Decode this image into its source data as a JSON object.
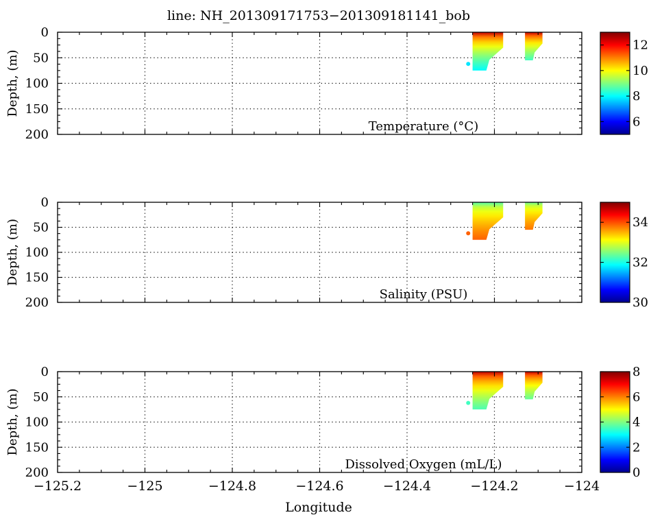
{
  "title": "line: NH_201309171753−201309181141_bob",
  "xlabel": "Longitude",
  "colormap": [
    "#00008f",
    "#0000ff",
    "#0080ff",
    "#00ffff",
    "#80ff80",
    "#ffff00",
    "#ff8000",
    "#ff0000",
    "#800000"
  ],
  "chart_data": [
    {
      "type": "heatmap",
      "variable": "Temperature",
      "label": "Temperature (°C)",
      "ylabel": "Depth, (m)",
      "xlim": [
        -125.2,
        -124
      ],
      "ylim": [
        200,
        0
      ],
      "xticks": [
        "−125.2",
        "−125",
        "−124.8",
        "−124.6",
        "−124.4",
        "−124.2",
        "−124"
      ],
      "yticks": [
        "0",
        "50",
        "100",
        "150",
        "200"
      ],
      "grid": true,
      "colorbar": {
        "min": 5,
        "max": 13,
        "ticks": [
          "12",
          "10",
          "8",
          "6"
        ],
        "tick_values": [
          12,
          10,
          8,
          6
        ]
      },
      "profiles": [
        {
          "lon": -124.26,
          "depth": 62,
          "value": 7.8
        },
        {
          "lon_range": [
            -124.25,
            -124.18
          ],
          "depth_range": [
            0,
            75
          ],
          "surface_value": 12.5,
          "bottom_value": 8.0
        },
        {
          "lon_range": [
            -124.13,
            -124.09
          ],
          "depth_range": [
            0,
            55
          ],
          "surface_value": 12.5,
          "bottom_value": 8.5
        }
      ]
    },
    {
      "type": "heatmap",
      "variable": "Salinity",
      "label": "Salinity (PSU)",
      "ylabel": "Depth, (m)",
      "xlim": [
        -125.2,
        -124
      ],
      "ylim": [
        200,
        0
      ],
      "xticks": [
        "−125.2",
        "−125",
        "−124.8",
        "−124.6",
        "−124.4",
        "−124.2",
        "−124"
      ],
      "yticks": [
        "0",
        "50",
        "100",
        "150",
        "200"
      ],
      "grid": true,
      "colorbar": {
        "min": 30,
        "max": 35,
        "ticks": [
          "34",
          "32",
          "30"
        ],
        "tick_values": [
          34,
          32,
          30
        ]
      },
      "profiles": [
        {
          "lon": -124.26,
          "depth": 62,
          "value": 33.9
        },
        {
          "lon_range": [
            -124.25,
            -124.18
          ],
          "depth_range": [
            0,
            75
          ],
          "surface_value": 32.3,
          "bottom_value": 33.9
        },
        {
          "lon_range": [
            -124.13,
            -124.09
          ],
          "depth_range": [
            0,
            55
          ],
          "surface_value": 32.4,
          "bottom_value": 33.8
        }
      ]
    },
    {
      "type": "heatmap",
      "variable": "Dissolved Oxygen",
      "label": "Dissolved Oxygen (mL/L)",
      "ylabel": "Depth, (m)",
      "xlim": [
        -125.2,
        -124
      ],
      "ylim": [
        200,
        0
      ],
      "xticks": [
        "−125.2",
        "−125",
        "−124.8",
        "−124.6",
        "−124.4",
        "−124.2",
        "−124"
      ],
      "yticks": [
        "0",
        "50",
        "100",
        "150",
        "200"
      ],
      "grid": true,
      "colorbar": {
        "min": 0,
        "max": 8,
        "ticks": [
          "8",
          "6",
          "4",
          "2",
          "0"
        ],
        "tick_values": [
          8,
          6,
          4,
          2,
          0
        ]
      },
      "profiles": [
        {
          "lon": -124.26,
          "depth": 62,
          "value": 3.5
        },
        {
          "lon_range": [
            -124.25,
            -124.18
          ],
          "depth_range": [
            0,
            75
          ],
          "surface_value": 7.5,
          "bottom_value": 3.6
        },
        {
          "lon_range": [
            -124.13,
            -124.09
          ],
          "depth_range": [
            0,
            55
          ],
          "surface_value": 7.5,
          "bottom_value": 3.8
        }
      ]
    }
  ]
}
